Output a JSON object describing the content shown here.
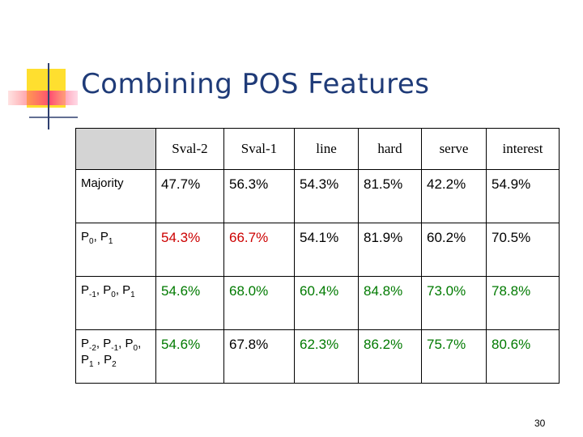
{
  "title": "Combining POS Features",
  "table": {
    "header": [
      "Sval-2",
      "Sval-1",
      "line",
      "hard",
      "serve",
      "interest"
    ],
    "rows": [
      {
        "label": [
          {
            "t": "Majority"
          }
        ],
        "cells": [
          {
            "text": "47.7%",
            "color": "#000000"
          },
          {
            "text": "56.3%",
            "color": "#000000"
          },
          {
            "text": "54.3%",
            "color": "#000000"
          },
          {
            "text": "81.5%",
            "color": "#000000"
          },
          {
            "text": "42.2%",
            "color": "#000000"
          },
          {
            "text": "54.9%",
            "color": "#000000"
          }
        ]
      },
      {
        "label": [
          {
            "t": "P",
            "sub": "0"
          },
          {
            "t": ", P",
            "sub": "1"
          }
        ],
        "cells": [
          {
            "text": "54.3%",
            "color": "#cc0000"
          },
          {
            "text": "66.7%",
            "color": "#cc0000"
          },
          {
            "text": "54.1%",
            "color": "#000000"
          },
          {
            "text": "81.9%",
            "color": "#000000"
          },
          {
            "text": "60.2%",
            "color": "#000000"
          },
          {
            "text": "70.5%",
            "color": "#000000"
          }
        ]
      },
      {
        "label": [
          {
            "t": "P",
            "sub": "-1"
          },
          {
            "t": ", P",
            "sub": "0"
          },
          {
            "t": ", P",
            "sub": "1"
          }
        ],
        "cells": [
          {
            "text": "54.6%",
            "color": "#007a00"
          },
          {
            "text": "68.0%",
            "color": "#007a00"
          },
          {
            "text": "60.4%",
            "color": "#007a00"
          },
          {
            "text": "84.8%",
            "color": "#007a00"
          },
          {
            "text": "73.0%",
            "color": "#007a00"
          },
          {
            "text": "78.8%",
            "color": "#007a00"
          }
        ]
      },
      {
        "label": [
          {
            "t": "P",
            "sub": "-2"
          },
          {
            "t": ", P",
            "sub": "-1"
          },
          {
            "t": ", P",
            "sub": "0"
          },
          {
            "t": ", P",
            "sub": "1"
          },
          {
            "t": " , P",
            "sub": "2"
          }
        ],
        "cells": [
          {
            "text": "54.6%",
            "color": "#007a00"
          },
          {
            "text": "67.8%",
            "color": "#000000"
          },
          {
            "text": "62.3%",
            "color": "#007a00"
          },
          {
            "text": "86.2%",
            "color": "#007a00"
          },
          {
            "text": "75.7%",
            "color": "#007a00"
          },
          {
            "text": "80.6%",
            "color": "#007a00"
          }
        ]
      }
    ]
  },
  "page_number": "30"
}
